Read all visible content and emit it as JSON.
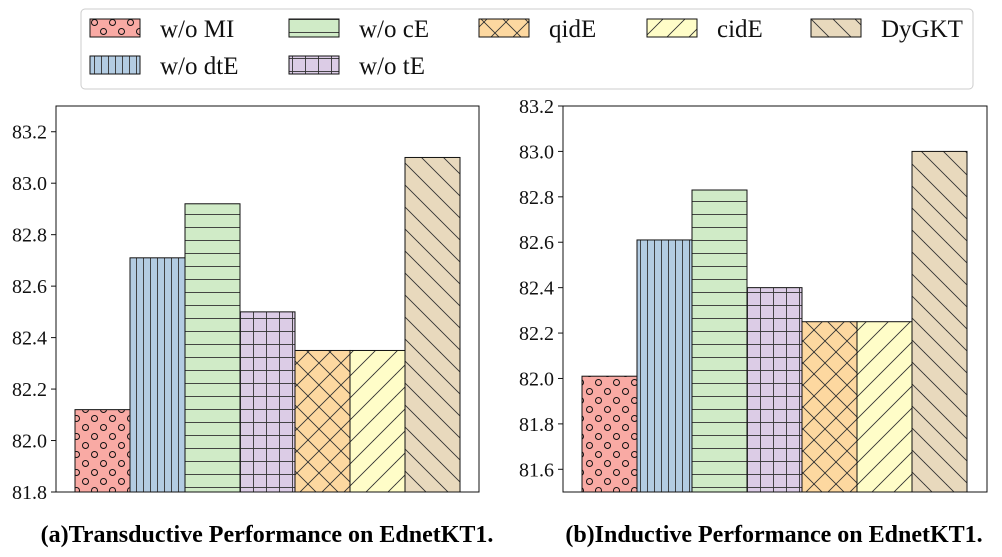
{
  "chart_data": [
    {
      "type": "bar",
      "caption": "(a)Transductive Performance on EdnetKT1.",
      "categories": [
        "w/o MI",
        "w/o dtE",
        "w/o cE",
        "w/o tE",
        "qidE",
        "cidE",
        "DyGKT"
      ],
      "values": [
        82.12,
        82.71,
        82.92,
        82.5,
        82.35,
        82.35,
        83.1
      ],
      "ylim": [
        81.8,
        83.3
      ],
      "yticks": [
        "81.8",
        "82.0",
        "82.2",
        "82.4",
        "82.6",
        "82.8",
        "83.0",
        "83.2"
      ],
      "ytick_values": [
        81.8,
        82.0,
        82.2,
        82.4,
        82.6,
        82.8,
        83.0,
        83.2
      ],
      "xlabel": "",
      "ylabel": "",
      "grid": false
    },
    {
      "type": "bar",
      "caption": "(b)Inductive Performance on EdnetKT1.",
      "categories": [
        "w/o MI",
        "w/o dtE",
        "w/o cE",
        "w/o tE",
        "qidE",
        "cidE",
        "DyGKT"
      ],
      "values": [
        82.01,
        82.61,
        82.83,
        82.4,
        82.25,
        82.25,
        83.0
      ],
      "ylim": [
        81.5,
        83.2
      ],
      "yticks": [
        "81.6",
        "81.8",
        "82.0",
        "82.2",
        "82.4",
        "82.6",
        "82.8",
        "83.0",
        "83.2"
      ],
      "ytick_values": [
        81.6,
        81.8,
        82.0,
        82.2,
        82.4,
        82.6,
        82.8,
        83.0,
        83.2
      ],
      "xlabel": "",
      "ylabel": "",
      "grid": false
    }
  ],
  "legend": {
    "placement": "top",
    "entries": [
      {
        "label": "w/o MI",
        "color": "#f9aaa4",
        "pattern": "circles"
      },
      {
        "label": "w/o cE",
        "color": "#d0ebc7",
        "pattern": "horizontal"
      },
      {
        "label": "qidE",
        "color": "#fdd8a0",
        "pattern": "crosshatch"
      },
      {
        "label": "cidE",
        "color": "#fffdc8",
        "pattern": "forward-diagonal"
      },
      {
        "label": "DyGKT",
        "color": "#e8d9bd",
        "pattern": "back-diagonal"
      },
      {
        "label": "w/o dtE",
        "color": "#b3cce2",
        "pattern": "vertical"
      },
      {
        "label": "w/o tE",
        "color": "#dccce6",
        "pattern": "grid"
      }
    ]
  },
  "series_colors": [
    "#f9aaa4",
    "#b3cce2",
    "#d0ebc7",
    "#dccce6",
    "#fdd8a0",
    "#fffdc8",
    "#e8d9bd"
  ]
}
